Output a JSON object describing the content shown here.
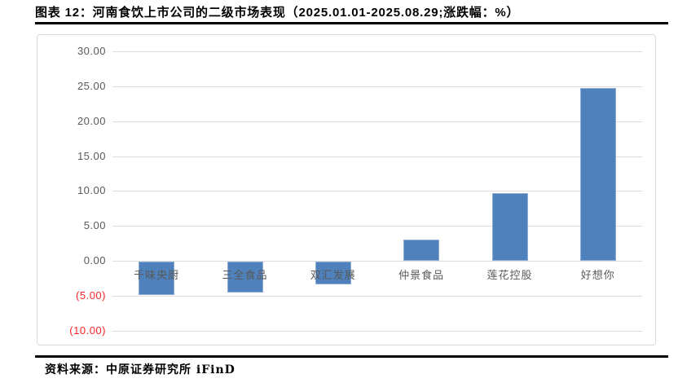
{
  "header": {
    "title": "图表 12：河南食饮上市公司的二级市场表现（2025.01.01-2025.08.29;涨跌幅：%）"
  },
  "footer": {
    "source": "资料来源：中原证券研究所 iFinD"
  },
  "colors": {
    "rule": "#000000",
    "chart_border": "#D9D9D9",
    "gridline": "#DCDCDC",
    "tick_label": "#595959",
    "negative_tick_label": "#FF2222",
    "bar": "#4F81BD",
    "bar_border": "#8FACD2",
    "category_label": "#595959"
  },
  "chart_data": {
    "type": "bar",
    "title": "图表 12：河南食饮上市公司的二级市场表现（2025.01.01-2025.08.29;涨跌幅：%）",
    "xlabel": "",
    "ylabel": "涨跌幅：%",
    "categories": [
      "千味央厨",
      "三全食品",
      "双汇发展",
      "仲景食品",
      "莲花控股",
      "好想你"
    ],
    "values": [
      -4.8,
      -4.4,
      -3.3,
      3.1,
      9.7,
      24.8
    ],
    "ylim": [
      -10,
      30
    ],
    "ytick_step": 5,
    "yticks": [
      {
        "value": 30,
        "label": "30.00",
        "negative": false
      },
      {
        "value": 25,
        "label": "25.00",
        "negative": false
      },
      {
        "value": 20,
        "label": "20.00",
        "negative": false
      },
      {
        "value": 15,
        "label": "15.00",
        "negative": false
      },
      {
        "value": 10,
        "label": "10.00",
        "negative": false
      },
      {
        "value": 5,
        "label": "5.00",
        "negative": false
      },
      {
        "value": 0,
        "label": "0.00",
        "negative": false
      },
      {
        "value": -5,
        "label": "(5.00)",
        "negative": true
      },
      {
        "value": -10,
        "label": "(10.00)",
        "negative": true
      }
    ],
    "grid": true,
    "legend": false,
    "bar_color": "#4F81BD"
  }
}
